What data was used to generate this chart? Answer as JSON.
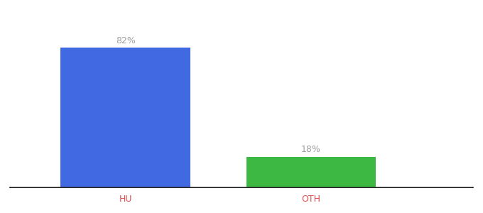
{
  "categories": [
    "HU",
    "OTH"
  ],
  "values": [
    82,
    18
  ],
  "bar_colors": [
    "#4169e1",
    "#3cb843"
  ],
  "labels": [
    "82%",
    "18%"
  ],
  "background_color": "#ffffff",
  "label_color": "#a0a0a0",
  "xlabel_color": "#e05050",
  "axis_line_color": "#111111",
  "label_fontsize": 9,
  "xlabel_fontsize": 9,
  "ylim": [
    0,
    100
  ],
  "bar_positions": [
    0.25,
    0.65
  ],
  "bar_width": 0.28,
  "xlim": [
    0.0,
    1.0
  ]
}
